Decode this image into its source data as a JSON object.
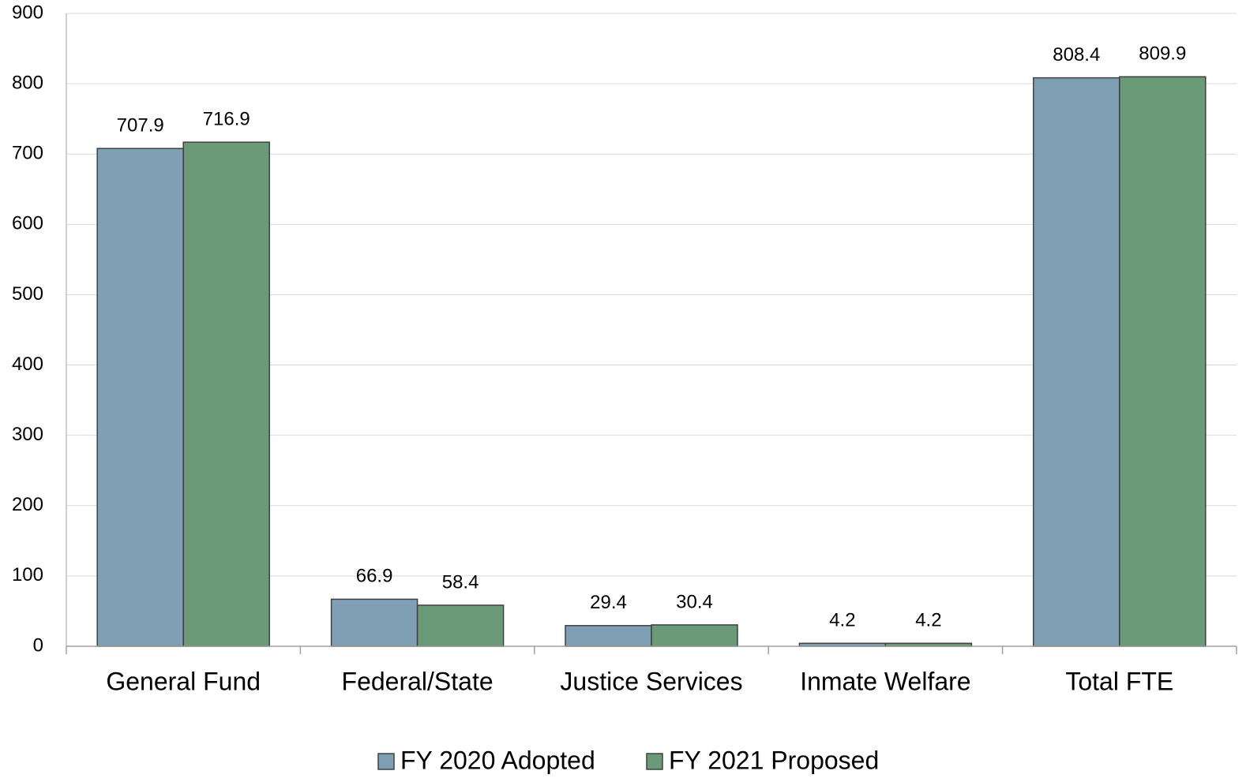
{
  "chart_data": {
    "type": "bar",
    "categories": [
      "General Fund",
      "Federal/State",
      "Justice Services",
      "Inmate Welfare",
      "Total FTE"
    ],
    "series": [
      {
        "name": "FY 2020 Adopted",
        "color": "#7f9fb5",
        "values": [
          707.9,
          66.9,
          29.4,
          4.2,
          808.4
        ]
      },
      {
        "name": "FY 2021 Proposed",
        "color": "#6b9a78",
        "values": [
          716.9,
          58.4,
          30.4,
          4.2,
          809.9
        ]
      }
    ],
    "ylim": [
      0,
      900
    ],
    "yticks": [
      0,
      100,
      200,
      300,
      400,
      500,
      600,
      700,
      800,
      900
    ],
    "grid": true,
    "legend": "bottom"
  }
}
